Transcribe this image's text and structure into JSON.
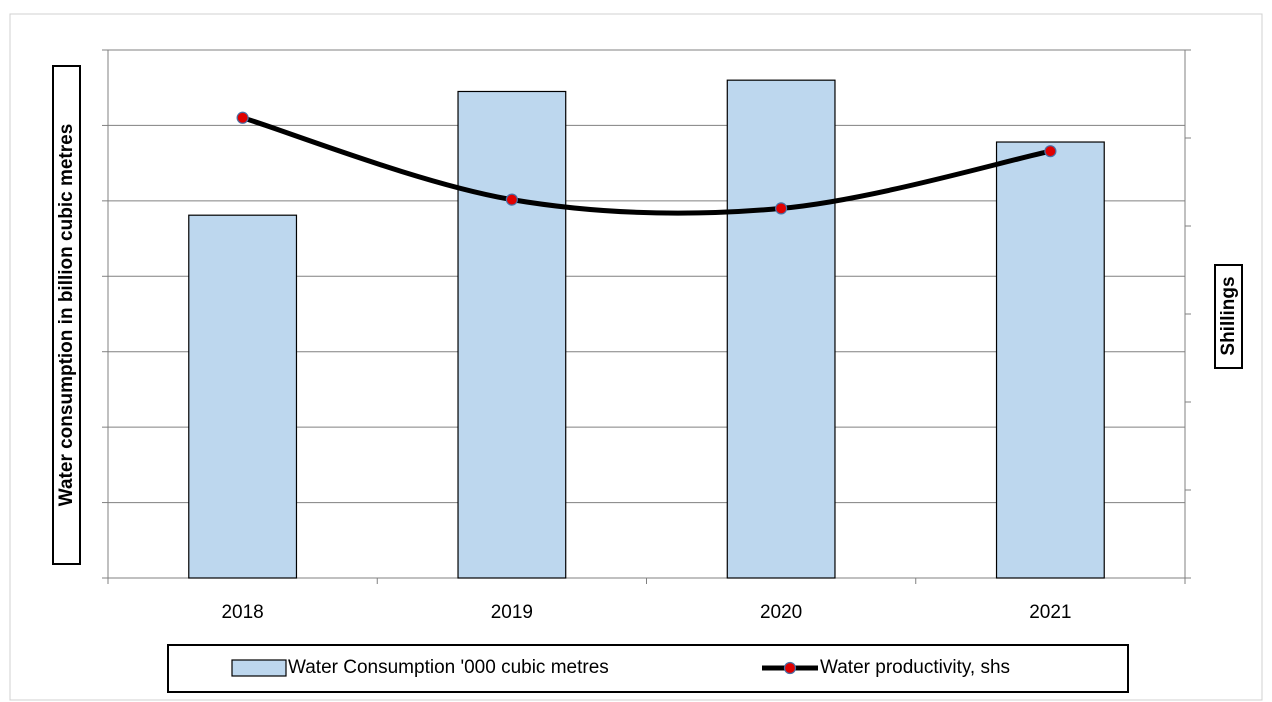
{
  "chart_data": {
    "type": "bar",
    "categories": [
      "2018",
      "2019",
      "2020",
      "2021"
    ],
    "y_label": "Water  consumption in billion cubic metres",
    "y2_label": "Shillings",
    "ylim": [
      0,
      7
    ],
    "yticks": [
      0,
      1,
      2,
      3,
      4,
      5,
      6,
      7
    ],
    "y2lim": [
      0,
      6
    ],
    "y2ticks": [
      0,
      1,
      2,
      3,
      4,
      5,
      6
    ],
    "grid": true,
    "legend": "bottom",
    "series": [
      {
        "name": "Water Consumption '000 cubic metres",
        "type": "bar",
        "color": "#bdd7ee",
        "values": [
          4.81,
          6.45,
          6.6,
          5.78
        ]
      },
      {
        "name": "Water productivity, shs",
        "type": "line",
        "axis": "y2",
        "smooth": true,
        "color": "#000000",
        "marker_color": "#e00000",
        "values": [
          5.23,
          4.3,
          4.2,
          4.85
        ]
      }
    ]
  }
}
